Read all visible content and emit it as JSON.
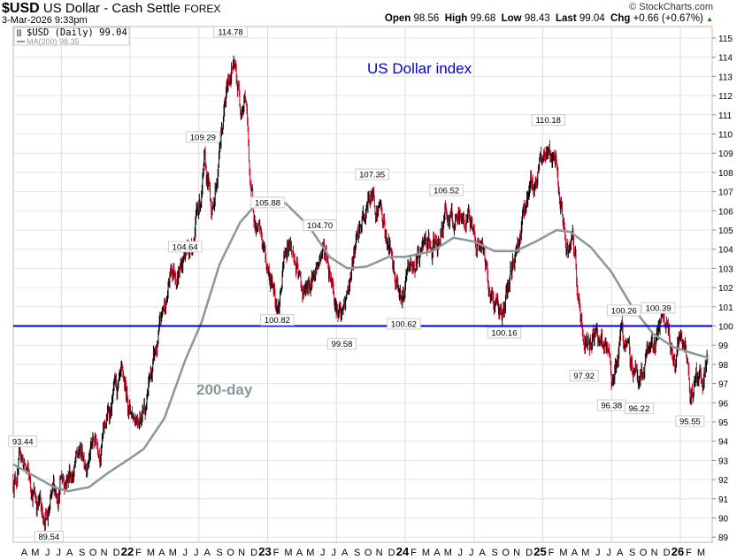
{
  "header": {
    "symbol": "$USD",
    "name": "US Dollar - Cash Settle",
    "exchange": "FOREX",
    "datetime": "3-Mar-2026 9:33pm",
    "brand": "© StockCharts.com",
    "open_label": "Open",
    "open": "98.56",
    "high_label": "High",
    "high": "99.68",
    "low_label": "Low",
    "low": "98.43",
    "last_label": "Last",
    "last": "99.04",
    "chg_label": "Chg",
    "chg": "+0.66 (+0.67%)",
    "chg_icon": "triangle-up-icon"
  },
  "legend": {
    "price": "$USD (Daily) 99.04",
    "ma": "MA(200) 98.35"
  },
  "colors": {
    "up": "#000000",
    "down": "#cc0022",
    "ma": "#8a979c",
    "hline": "#0000cc",
    "title": "#0000cc"
  },
  "chart_data": {
    "type": "ohlc-bar",
    "title": "US Dollar index",
    "annotation": "200-day",
    "ylim": [
      89,
      115
    ],
    "yticks": [
      89,
      90,
      91,
      92,
      93,
      94,
      95,
      96,
      97,
      98,
      99,
      100,
      101,
      102,
      103,
      104,
      105,
      106,
      107,
      108,
      109,
      110,
      111,
      112,
      113,
      114,
      115
    ],
    "xlim": [
      2021.15,
      2026.22
    ],
    "xticks": [
      {
        "t": 2021.25,
        "l": "A"
      },
      {
        "t": 2021.33,
        "l": "M"
      },
      {
        "t": 2021.42,
        "l": "J"
      },
      {
        "t": 2021.5,
        "l": "J"
      },
      {
        "t": 2021.58,
        "l": "A"
      },
      {
        "t": 2021.67,
        "l": "S"
      },
      {
        "t": 2021.75,
        "l": "O"
      },
      {
        "t": 2021.83,
        "l": "N"
      },
      {
        "t": 2021.92,
        "l": "D"
      },
      {
        "t": 2022.0,
        "l": "22",
        "bold": true
      },
      {
        "t": 2022.08,
        "l": "F"
      },
      {
        "t": 2022.17,
        "l": "M"
      },
      {
        "t": 2022.25,
        "l": "A"
      },
      {
        "t": 2022.33,
        "l": "M"
      },
      {
        "t": 2022.42,
        "l": "J"
      },
      {
        "t": 2022.5,
        "l": "J"
      },
      {
        "t": 2022.58,
        "l": "A"
      },
      {
        "t": 2022.67,
        "l": "S"
      },
      {
        "t": 2022.75,
        "l": "O"
      },
      {
        "t": 2022.83,
        "l": "N"
      },
      {
        "t": 2022.92,
        "l": "D"
      },
      {
        "t": 2023.0,
        "l": "23",
        "bold": true
      },
      {
        "t": 2023.08,
        "l": "F"
      },
      {
        "t": 2023.17,
        "l": "M"
      },
      {
        "t": 2023.25,
        "l": "A"
      },
      {
        "t": 2023.33,
        "l": "M"
      },
      {
        "t": 2023.42,
        "l": "J"
      },
      {
        "t": 2023.5,
        "l": "J"
      },
      {
        "t": 2023.58,
        "l": "A"
      },
      {
        "t": 2023.67,
        "l": "S"
      },
      {
        "t": 2023.75,
        "l": "O"
      },
      {
        "t": 2023.83,
        "l": "N"
      },
      {
        "t": 2023.92,
        "l": "D"
      },
      {
        "t": 2024.0,
        "l": "24",
        "bold": true
      },
      {
        "t": 2024.08,
        "l": "F"
      },
      {
        "t": 2024.17,
        "l": "M"
      },
      {
        "t": 2024.25,
        "l": "A"
      },
      {
        "t": 2024.33,
        "l": "M"
      },
      {
        "t": 2024.42,
        "l": "J"
      },
      {
        "t": 2024.5,
        "l": "J"
      },
      {
        "t": 2024.58,
        "l": "A"
      },
      {
        "t": 2024.67,
        "l": "S"
      },
      {
        "t": 2024.75,
        "l": "O"
      },
      {
        "t": 2024.83,
        "l": "N"
      },
      {
        "t": 2024.92,
        "l": "D"
      },
      {
        "t": 2025.0,
        "l": "25",
        "bold": true
      },
      {
        "t": 2025.08,
        "l": "F"
      },
      {
        "t": 2025.17,
        "l": "M"
      },
      {
        "t": 2025.25,
        "l": "A"
      },
      {
        "t": 2025.33,
        "l": "M"
      },
      {
        "t": 2025.42,
        "l": "J"
      },
      {
        "t": 2025.5,
        "l": "J"
      },
      {
        "t": 2025.58,
        "l": "A"
      },
      {
        "t": 2025.67,
        "l": "S"
      },
      {
        "t": 2025.75,
        "l": "O"
      },
      {
        "t": 2025.83,
        "l": "N"
      },
      {
        "t": 2025.92,
        "l": "D"
      },
      {
        "t": 2026.0,
        "l": "26",
        "bold": true
      },
      {
        "t": 2026.08,
        "l": "F"
      },
      {
        "t": 2026.17,
        "l": "M"
      }
    ],
    "hline": 100,
    "price_path": [
      [
        2021.15,
        92
      ],
      [
        2021.21,
        93.2
      ],
      [
        2021.26,
        92
      ],
      [
        2021.4,
        89.8
      ],
      [
        2021.5,
        92.2
      ],
      [
        2021.6,
        92.8
      ],
      [
        2021.7,
        93.6
      ],
      [
        2021.8,
        94.3
      ],
      [
        2021.88,
        96.3
      ],
      [
        2021.96,
        96.2
      ],
      [
        2022.02,
        95.5
      ],
      [
        2022.12,
        96.5
      ],
      [
        2022.2,
        98.8
      ],
      [
        2022.3,
        102.8
      ],
      [
        2022.38,
        103.5
      ],
      [
        2022.45,
        104.5
      ],
      [
        2022.54,
        107.8
      ],
      [
        2022.6,
        106
      ],
      [
        2022.66,
        109.8
      ],
      [
        2022.74,
        113.8
      ],
      [
        2022.8,
        111.8
      ],
      [
        2022.84,
        112.3
      ],
      [
        2022.88,
        106.5
      ],
      [
        2022.95,
        104.2
      ],
      [
        2023.02,
        102.5
      ],
      [
        2023.08,
        101.5
      ],
      [
        2023.16,
        104.8
      ],
      [
        2023.24,
        101.8
      ],
      [
        2023.3,
        101.6
      ],
      [
        2023.4,
        104.2
      ],
      [
        2023.47,
        102.8
      ],
      [
        2023.54,
        100.1
      ],
      [
        2023.64,
        103.8
      ],
      [
        2023.75,
        106.8
      ],
      [
        2023.82,
        106.2
      ],
      [
        2023.9,
        103.6
      ],
      [
        2023.99,
        101.6
      ],
      [
        2024.07,
        103.2
      ],
      [
        2024.13,
        104.2
      ],
      [
        2024.2,
        103.5
      ],
      [
        2024.3,
        106.1
      ],
      [
        2024.38,
        104.8
      ],
      [
        2024.46,
        105.8
      ],
      [
        2024.54,
        104.3
      ],
      [
        2024.62,
        101.8
      ],
      [
        2024.72,
        100.7
      ],
      [
        2024.8,
        103.8
      ],
      [
        2024.88,
        106.6
      ],
      [
        2024.96,
        107.8
      ],
      [
        2025.04,
        109.6
      ],
      [
        2025.1,
        107.8
      ],
      [
        2025.16,
        104.2
      ],
      [
        2025.22,
        103.8
      ],
      [
        2025.3,
        98.8
      ],
      [
        2025.38,
        100.2
      ],
      [
        2025.45,
        98.6
      ],
      [
        2025.5,
        96.9
      ],
      [
        2025.58,
        99.6
      ],
      [
        2025.64,
        97.6
      ],
      [
        2025.71,
        97.4
      ],
      [
        2025.78,
        98.8
      ],
      [
        2025.84,
        99.8
      ],
      [
        2025.9,
        99.3
      ],
      [
        2025.96,
        98.2
      ],
      [
        2026.02,
        98.8
      ],
      [
        2026.07,
        96.6
      ],
      [
        2026.12,
        97.2
      ],
      [
        2026.17,
        97.8
      ],
      [
        2026.2,
        99.04
      ]
    ],
    "ma200": [
      [
        2021.15,
        92.8
      ],
      [
        2021.3,
        92.2
      ],
      [
        2021.45,
        91.6
      ],
      [
        2021.55,
        91.4
      ],
      [
        2021.7,
        91.6
      ],
      [
        2021.85,
        92.4
      ],
      [
        2022.0,
        93.1
      ],
      [
        2022.1,
        93.6
      ],
      [
        2022.25,
        95.2
      ],
      [
        2022.4,
        98.2
      ],
      [
        2022.52,
        100.2
      ],
      [
        2022.65,
        103.2
      ],
      [
        2022.8,
        105.4
      ],
      [
        2022.9,
        106.2
      ],
      [
        2023.0,
        106.6
      ],
      [
        2023.13,
        106.4
      ],
      [
        2023.3,
        105.2
      ],
      [
        2023.45,
        103.6
      ],
      [
        2023.58,
        103.0
      ],
      [
        2023.72,
        103.1
      ],
      [
        2023.88,
        103.6
      ],
      [
        2024.0,
        103.6
      ],
      [
        2024.2,
        103.9
      ],
      [
        2024.35,
        104.6
      ],
      [
        2024.5,
        104.4
      ],
      [
        2024.65,
        103.9
      ],
      [
        2024.8,
        103.9
      ],
      [
        2024.95,
        104.4
      ],
      [
        2025.1,
        105.0
      ],
      [
        2025.2,
        104.9
      ],
      [
        2025.35,
        104.1
      ],
      [
        2025.5,
        102.8
      ],
      [
        2025.65,
        101.0
      ],
      [
        2025.8,
        99.6
      ],
      [
        2025.95,
        98.9
      ],
      [
        2026.08,
        98.6
      ],
      [
        2026.2,
        98.35
      ]
    ],
    "labels": [
      {
        "t": 2021.22,
        "v": 93.44,
        "text": "93.44",
        "pos": "above"
      },
      {
        "t": 2021.41,
        "v": 89.54,
        "text": "89.54",
        "pos": "below"
      },
      {
        "t": 2022.53,
        "v": 109.29,
        "text": "109.29",
        "pos": "above"
      },
      {
        "t": 2022.73,
        "v": 114.78,
        "text": "114.78",
        "pos": "above"
      },
      {
        "t": 2022.4,
        "v": 104.64,
        "text": "104.64",
        "pos": "below"
      },
      {
        "t": 2023.07,
        "v": 100.82,
        "text": "100.82",
        "pos": "below"
      },
      {
        "t": 2023.0,
        "v": 105.88,
        "text": "105.88",
        "pos": "above"
      },
      {
        "t": 2023.38,
        "v": 104.7,
        "text": "104.70",
        "pos": "above"
      },
      {
        "t": 2023.54,
        "v": 99.58,
        "text": "99.58",
        "pos": "below"
      },
      {
        "t": 2023.76,
        "v": 107.35,
        "text": "107.35",
        "pos": "above"
      },
      {
        "t": 2023.99,
        "v": 100.62,
        "text": "100.62",
        "pos": "below"
      },
      {
        "t": 2024.3,
        "v": 106.52,
        "text": "106.52",
        "pos": "above"
      },
      {
        "t": 2024.72,
        "v": 100.16,
        "text": "100.16",
        "pos": "below"
      },
      {
        "t": 2025.04,
        "v": 110.18,
        "text": "110.18",
        "pos": "above"
      },
      {
        "t": 2025.3,
        "v": 97.92,
        "text": "97.92",
        "pos": "below"
      },
      {
        "t": 2025.5,
        "v": 96.38,
        "text": "96.38",
        "pos": "below"
      },
      {
        "t": 2025.59,
        "v": 100.26,
        "text": "100.26",
        "pos": "above"
      },
      {
        "t": 2025.7,
        "v": 96.22,
        "text": "96.22",
        "pos": "below"
      },
      {
        "t": 2025.84,
        "v": 100.39,
        "text": "100.39",
        "pos": "above"
      },
      {
        "t": 2026.07,
        "v": 95.55,
        "text": "95.55",
        "pos": "below"
      }
    ]
  }
}
